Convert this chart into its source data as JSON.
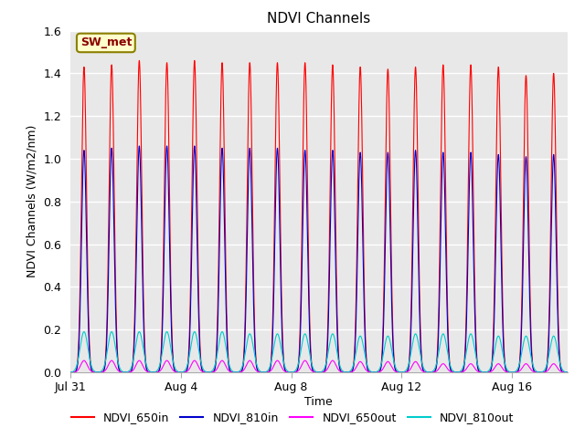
{
  "title": "NDVI Channels",
  "xlabel": "Time",
  "ylabel": "NDVI Channels (W/m2/nm)",
  "annotation_text": "SW_met",
  "annotation_color": "#8B0000",
  "annotation_bg": "#FFFFCC",
  "annotation_border": "#8B8000",
  "ylim": [
    0.0,
    1.6
  ],
  "yticks": [
    0.0,
    0.2,
    0.4,
    0.6,
    0.8,
    1.0,
    1.2,
    1.4,
    1.6
  ],
  "fig_bg": "#FFFFFF",
  "plot_bg": "#E8E8E8",
  "grid_color": "#FFFFFF",
  "series": [
    {
      "label": "NDVI_650in",
      "color": "#FF0000",
      "peak_values": [
        1.43,
        1.44,
        1.46,
        1.45,
        1.46,
        1.45,
        1.45,
        1.45,
        1.45,
        1.44,
        1.43,
        1.42,
        1.43,
        1.44,
        1.44,
        1.43,
        1.39,
        1.4
      ],
      "sigma": 0.09
    },
    {
      "label": "NDVI_810in",
      "color": "#0000CC",
      "peak_values": [
        1.04,
        1.05,
        1.06,
        1.06,
        1.06,
        1.05,
        1.05,
        1.05,
        1.04,
        1.04,
        1.03,
        1.03,
        1.04,
        1.03,
        1.03,
        1.02,
        1.01,
        1.02
      ],
      "sigma": 0.09
    },
    {
      "label": "NDVI_650out",
      "color": "#FF00FF",
      "peak_values": [
        0.055,
        0.055,
        0.055,
        0.055,
        0.055,
        0.055,
        0.055,
        0.055,
        0.055,
        0.055,
        0.05,
        0.05,
        0.05,
        0.04,
        0.04,
        0.04,
        0.04,
        0.04
      ],
      "sigma": 0.12
    },
    {
      "label": "NDVI_810out",
      "color": "#00CCCC",
      "peak_values": [
        0.19,
        0.19,
        0.19,
        0.19,
        0.19,
        0.19,
        0.18,
        0.18,
        0.18,
        0.18,
        0.17,
        0.17,
        0.18,
        0.18,
        0.18,
        0.17,
        0.17,
        0.17
      ],
      "sigma": 0.14
    }
  ],
  "x_tick_labels": [
    "Jul 31",
    "Aug 4",
    "Aug 8",
    "Aug 12",
    "Aug 16"
  ],
  "x_tick_positions": [
    0,
    4,
    8,
    12,
    16
  ],
  "total_days": 18,
  "legend_colors": [
    "#FF0000",
    "#0000CC",
    "#FF00FF",
    "#00CCCC"
  ],
  "legend_labels": [
    "NDVI_650in",
    "NDVI_810in",
    "NDVI_650out",
    "NDVI_810out"
  ]
}
